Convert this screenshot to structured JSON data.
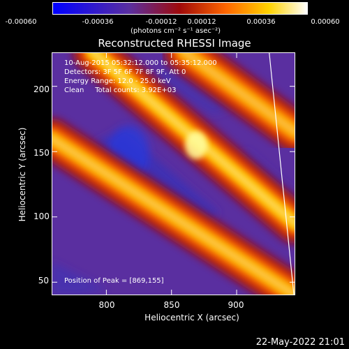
{
  "chart_data": {
    "type": "heatmap",
    "title": "Reconstructed RHESSI Image",
    "xlabel": "Heliocentric X (arcsec)",
    "ylabel": "Heliocentric Y (arcsec)",
    "xlim": [
      758,
      945
    ],
    "ylim": [
      40,
      226
    ],
    "x_ticks": [
      "800",
      "850",
      "900"
    ],
    "x_tick_values": [
      800,
      850,
      900
    ],
    "y_ticks": [
      "50",
      "100",
      "150",
      "200"
    ],
    "y_tick_values": [
      50,
      100,
      150,
      200
    ],
    "colorbar": {
      "range": [
        -0.0006,
        0.0006
      ],
      "tick_labels": [
        "-0.00060",
        "-0.00036",
        "-0.00012",
        "0.00012",
        "0.00036",
        "0.00060"
      ],
      "tick_values": [
        -0.0006,
        -0.00036,
        -0.00012,
        0.00012,
        0.00036,
        0.0006
      ],
      "unit_label": "(photons cm⁻² s⁻¹ asec⁻²)",
      "colors": [
        "#0000ff",
        "#5a2fa0",
        "#a00a0a",
        "#ff6600",
        "#ffd200",
        "#ffffff"
      ]
    },
    "annotations": {
      "time": "10-Aug-2015 05:32:12.000 to 05:35:12.000",
      "detectors": "Detectors: 3F 5F 6F 7F 8F 9F, Att 0",
      "energy": "Energy Range: 12.0 - 25.0 keV",
      "method": "Clean     Total counts: 3.92E+03",
      "peak": "Position of Peak = [869,155]"
    },
    "bright_ridges": [
      {
        "from": [
          758,
          160
        ],
        "to": [
          945,
          40
        ],
        "peak_value": 0.0005
      },
      {
        "from": [
          790,
          226
        ],
        "to": [
          945,
          95
        ],
        "peak_value": 0.0006
      },
      {
        "from": [
          860,
          226
        ],
        "to": [
          945,
          165
        ],
        "peak_value": 0.00045
      }
    ],
    "peak_position": [
      869,
      155
    ],
    "limb": {
      "from": [
        925,
        226
      ],
      "to": [
        944,
        40
      ]
    }
  },
  "footer": {
    "datestamp": "22-May-2022 21:01"
  }
}
